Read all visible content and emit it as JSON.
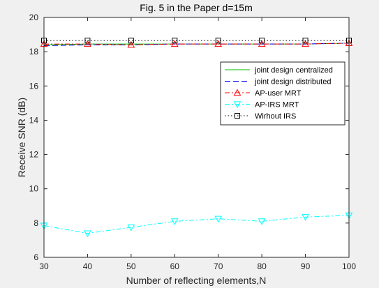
{
  "chart_data": {
    "type": "line",
    "title": "Fig. 5 in the Paper d=15m",
    "xlabel": "Number of reflecting elements,N",
    "ylabel": "Receive SNR (dB)",
    "xlim": [
      30,
      100
    ],
    "ylim": [
      6,
      20
    ],
    "xticks": [
      "30",
      "40",
      "50",
      "60",
      "70",
      "80",
      "90",
      "100"
    ],
    "yticks": [
      "6",
      "8",
      "10",
      "12",
      "14",
      "16",
      "18",
      "20"
    ],
    "grid": false,
    "legend_position": "top-right",
    "x": [
      30,
      40,
      50,
      60,
      70,
      80,
      90,
      100
    ],
    "series": [
      {
        "name": "joint design centralized",
        "color": "#00c000",
        "style": "solid",
        "marker": "none",
        "values": [
          18.4,
          18.45,
          18.45,
          18.45,
          18.45,
          18.45,
          18.45,
          18.5
        ]
      },
      {
        "name": "joint design distributed",
        "color": "#0000ff",
        "style": "dashed",
        "marker": "none",
        "values": [
          18.35,
          18.4,
          18.4,
          18.45,
          18.45,
          18.45,
          18.45,
          18.5
        ]
      },
      {
        "name": "AP-user MRT",
        "color": "#ff0000",
        "style": "dashdot",
        "marker": "triangle-up",
        "values": [
          18.45,
          18.45,
          18.4,
          18.45,
          18.45,
          18.45,
          18.45,
          18.5
        ]
      },
      {
        "name": "AP-IRS MRT",
        "color": "#00ffff",
        "style": "dashdot",
        "marker": "triangle-down",
        "values": [
          7.85,
          7.4,
          7.75,
          8.1,
          8.25,
          8.1,
          8.35,
          8.45
        ]
      },
      {
        "name": "Wirhout IRS",
        "color": "#000000",
        "style": "dotted",
        "marker": "square",
        "values": [
          18.65,
          18.65,
          18.65,
          18.65,
          18.65,
          18.65,
          18.65,
          18.65
        ]
      }
    ]
  }
}
